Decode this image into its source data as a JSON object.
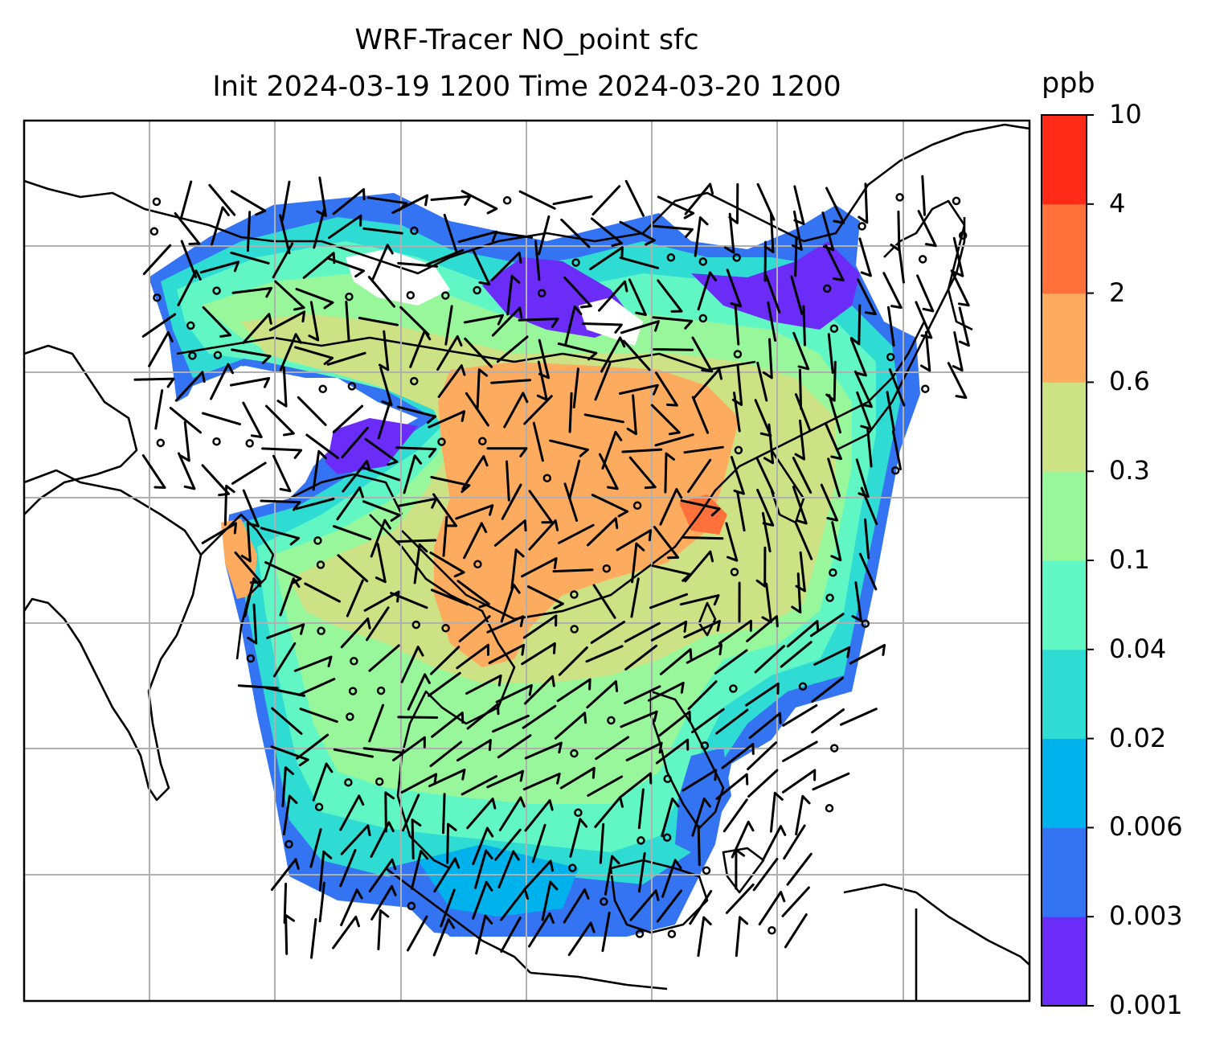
{
  "title": {
    "line1": "WRF-Tracer NO_point sfc",
    "line2": "Init 2024-03-19 1200 Time 2024-03-20 1200"
  },
  "colorbar": {
    "unit": "ppb",
    "tick_labels": [
      "0.001",
      "0.003",
      "0.006",
      "0.02",
      "0.04",
      "0.1",
      "0.3",
      "0.6",
      "2",
      "4",
      "10"
    ],
    "colors": [
      "#6a2cf6",
      "#3474f2",
      "#00b2ec",
      "#2fdcd4",
      "#61f7c5",
      "#98f79b",
      "#cde284",
      "#fdab5e",
      "#ff703b",
      "#ff2a17"
    ]
  },
  "map": {
    "description_colors": {
      "land_outline": "#000000",
      "gridline": "#b0b0b0",
      "frame": "#000000"
    },
    "wind_station_markers": "circle",
    "wind_barbs": "black"
  }
}
